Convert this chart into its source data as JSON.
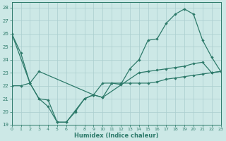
{
  "xlabel": "Humidex (Indice chaleur)",
  "xlim": [
    0,
    23
  ],
  "ylim": [
    19,
    28.4
  ],
  "yticks": [
    19,
    20,
    21,
    22,
    23,
    24,
    25,
    26,
    27,
    28
  ],
  "xticks": [
    0,
    1,
    2,
    3,
    4,
    5,
    6,
    7,
    8,
    9,
    10,
    11,
    12,
    13,
    14,
    15,
    16,
    17,
    18,
    19,
    20,
    21,
    22,
    23
  ],
  "bg_color": "#cce8e6",
  "line_color": "#2d7a6a",
  "grid_color": "#aacece",
  "line1_x": [
    0,
    1,
    2,
    3,
    4,
    5,
    6,
    7,
    8,
    9,
    10,
    11,
    12,
    13,
    14,
    15,
    16,
    17,
    18,
    19,
    20,
    21,
    22,
    23
  ],
  "line1_y": [
    26.0,
    24.5,
    22.2,
    21.0,
    20.4,
    19.2,
    19.2,
    20.1,
    21.0,
    21.3,
    22.2,
    22.2,
    22.1,
    23.3,
    24.0,
    25.5,
    25.6,
    26.8,
    27.5,
    27.9,
    27.5,
    25.5,
    24.2,
    23.1
  ],
  "line2_x": [
    0,
    2,
    3,
    9,
    10,
    14,
    15,
    16,
    17,
    18,
    19,
    20,
    21,
    22,
    23
  ],
  "line2_y": [
    26.0,
    22.2,
    23.1,
    21.3,
    21.1,
    23.0,
    23.1,
    23.2,
    23.3,
    23.4,
    23.5,
    23.7,
    23.8,
    23.0,
    23.1
  ],
  "line3_x": [
    0,
    1,
    2,
    3,
    4,
    5,
    6,
    7,
    8,
    9,
    10,
    11,
    12,
    13,
    14,
    15,
    16,
    17,
    18,
    19,
    20,
    21,
    22,
    23
  ],
  "line3_y": [
    22.0,
    22.0,
    22.2,
    21.0,
    20.9,
    19.2,
    19.2,
    20.0,
    21.0,
    21.3,
    21.1,
    22.2,
    22.2,
    22.2,
    22.2,
    22.2,
    22.3,
    22.5,
    22.6,
    22.7,
    22.8,
    22.9,
    23.0,
    23.1
  ]
}
